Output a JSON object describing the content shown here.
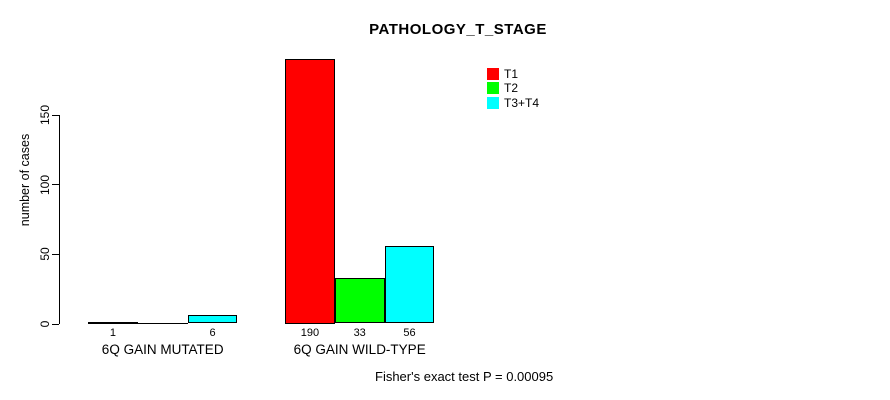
{
  "title": "PATHOLOGY_T_STAGE",
  "footer": "Fisher's exact test P = 0.00095",
  "y_axis": {
    "label": "number of cases",
    "ticks": [
      0,
      50,
      100,
      150
    ]
  },
  "legend": {
    "position": "top-right",
    "items": [
      {
        "label": "T1",
        "color": "#ff0000"
      },
      {
        "label": "T2",
        "color": "#00ff00"
      },
      {
        "label": "T3+T4",
        "color": "#00ffff"
      }
    ]
  },
  "chart_data": {
    "type": "bar",
    "title": "PATHOLOGY_T_STAGE",
    "categories": [
      "6Q GAIN MUTATED",
      "6Q GAIN WILD-TYPE"
    ],
    "series": [
      {
        "name": "T1",
        "color": "#ff0000",
        "values": [
          1,
          190
        ]
      },
      {
        "name": "T2",
        "color": "#00ff00",
        "values": [
          0,
          33
        ]
      },
      {
        "name": "T3+T4",
        "color": "#00ffff",
        "values": [
          6,
          56
        ]
      }
    ],
    "bar_value_labels": [
      [
        "1",
        "",
        "6"
      ],
      [
        "190",
        "33",
        "56"
      ]
    ],
    "xlabel": "",
    "ylabel": "number of cases",
    "ylim": [
      0,
      190
    ],
    "yticks": [
      0,
      50,
      100,
      150
    ],
    "grid": false,
    "legend_position": "top-right",
    "annotation": "Fisher's exact test P = 0.00095"
  }
}
